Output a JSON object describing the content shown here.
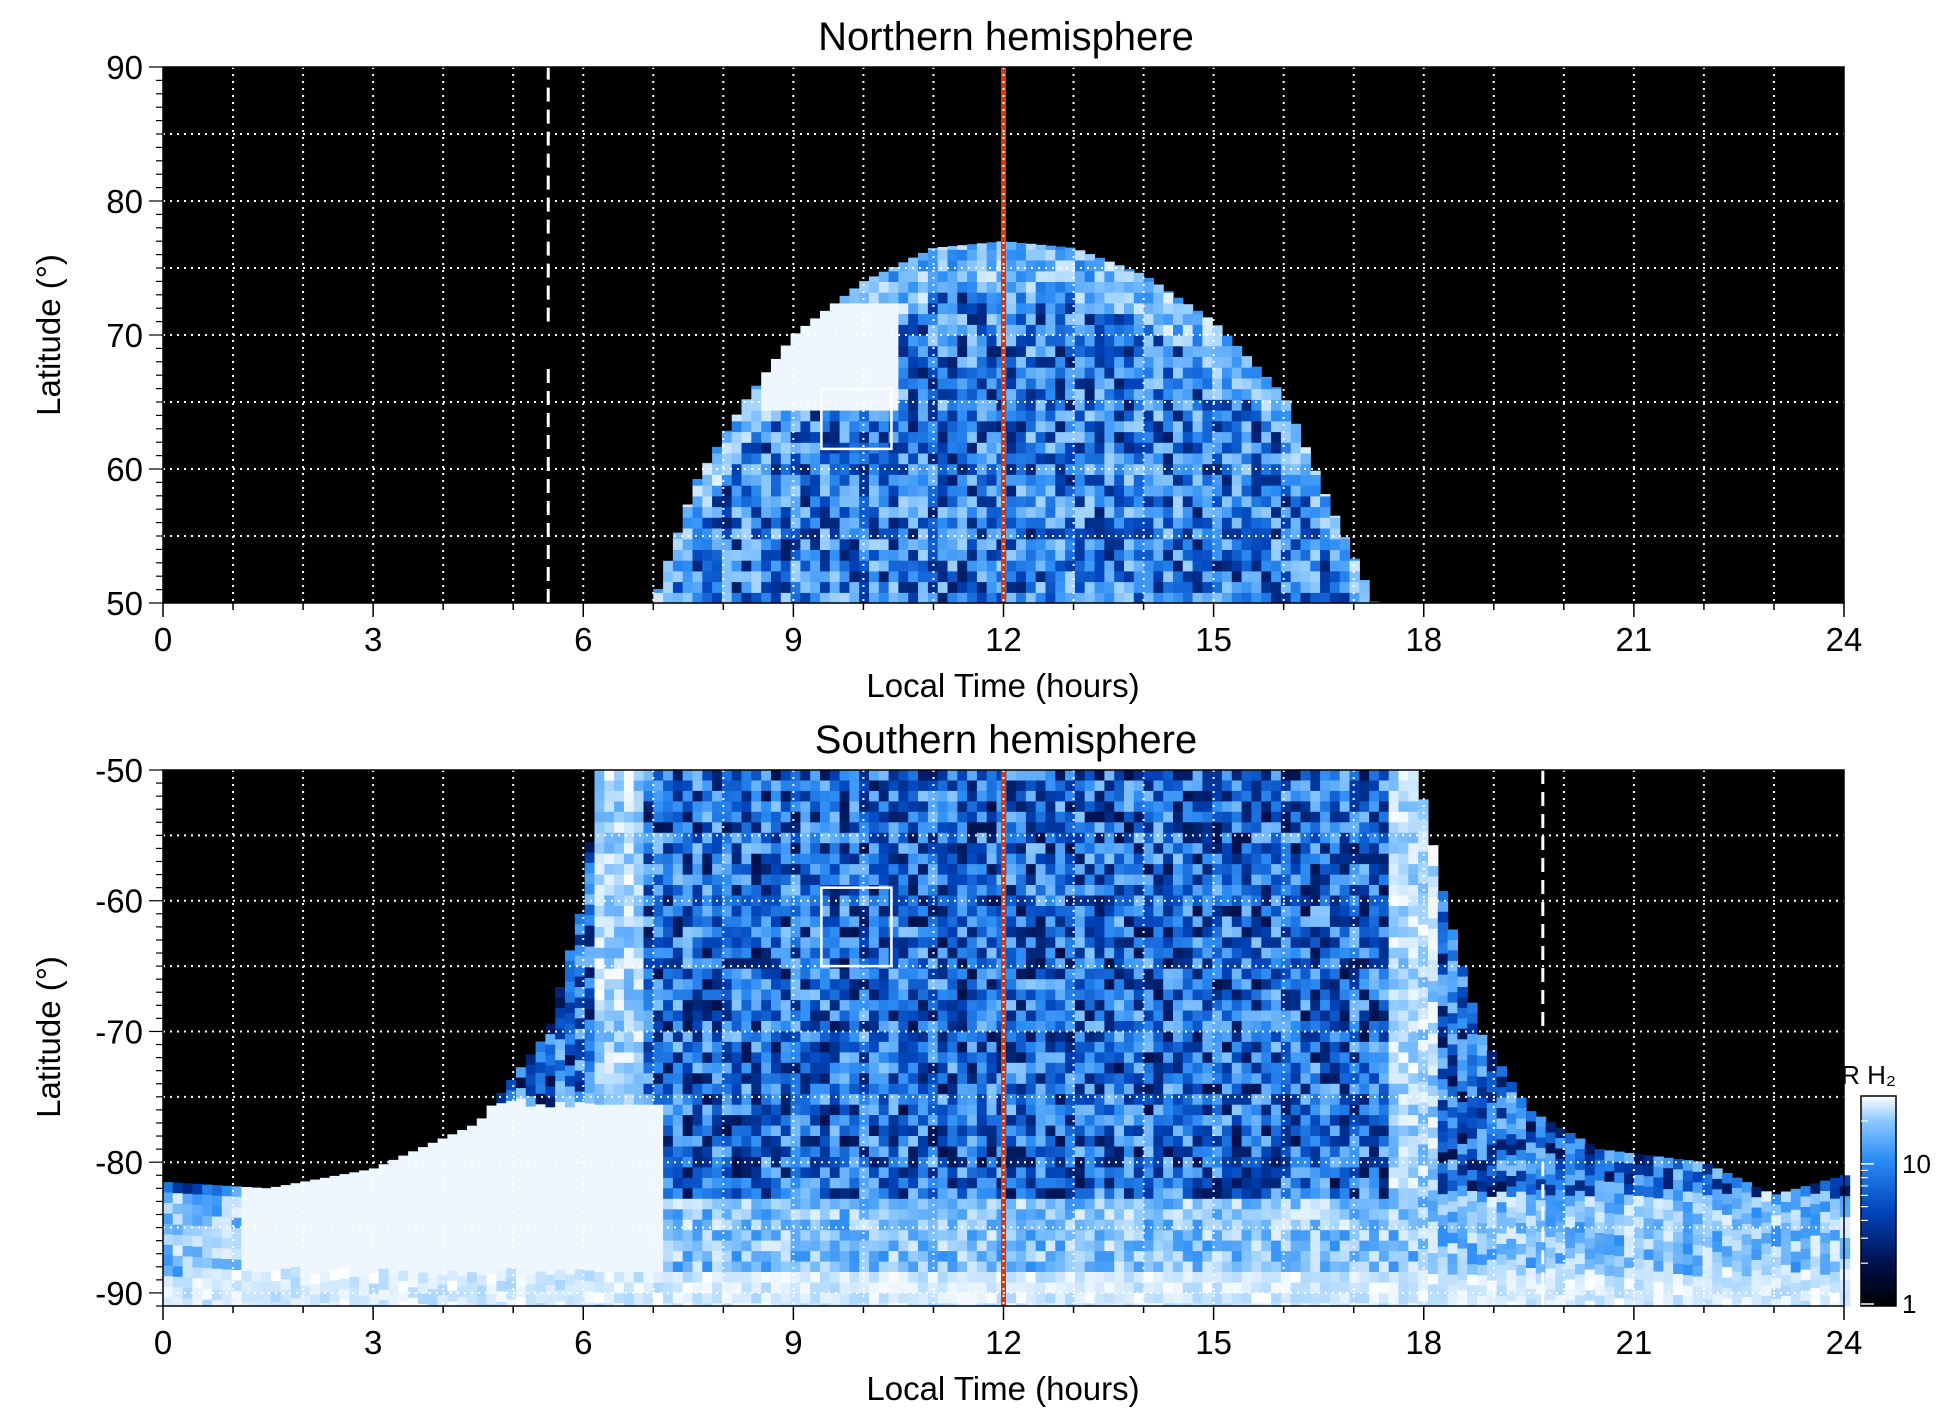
{
  "chart_data": [
    {
      "type": "heatmap",
      "title": "Northern hemisphere",
      "xlabel": "Local Time (hours)",
      "ylabel": "Latitude (°)",
      "xlim": [
        0,
        24
      ],
      "ylim": [
        50,
        90
      ],
      "xticks": [
        "0",
        "3",
        "6",
        "9",
        "12",
        "15",
        "18",
        "21",
        "24"
      ],
      "yticks": [
        "50",
        "60",
        "70",
        "80",
        "90"
      ],
      "grid": true,
      "noon_line_lt": 12,
      "dashed_line_lt": 5.5,
      "dashed_segments_lat": [
        [
          50,
          68
        ],
        [
          71,
          90
        ]
      ],
      "coverage_lat_boundary": [
        [
          7.0,
          50
        ],
        [
          7.6,
          59
        ],
        [
          8.3,
          65
        ],
        [
          9.0,
          70
        ],
        [
          10.0,
          74
        ],
        [
          11.0,
          76.5
        ],
        [
          12.0,
          77
        ],
        [
          13.0,
          76.5
        ],
        [
          14.0,
          74.5
        ],
        [
          15.0,
          71
        ],
        [
          16.0,
          65.5
        ],
        [
          16.6,
          58
        ],
        [
          17.3,
          50
        ]
      ],
      "bright_feature": {
        "lt_range": [
          8.5,
          10.5
        ],
        "lat_range": [
          64,
          72
        ]
      },
      "box": {
        "lt_range": [
          9.4,
          10.4
        ],
        "lat_range": [
          61.5,
          66
        ]
      }
    },
    {
      "type": "heatmap",
      "title": "Southern hemisphere",
      "xlabel": "Local Time (hours)",
      "ylabel": "Latitude (°)",
      "xlim": [
        0,
        24
      ],
      "ylim": [
        -91,
        -50
      ],
      "xticks": [
        "0",
        "3",
        "6",
        "9",
        "12",
        "15",
        "18",
        "21",
        "24"
      ],
      "yticks": [
        "-90",
        "-80",
        "-70",
        "-60",
        "-50"
      ],
      "grid": true,
      "noon_line_lt": 12,
      "dashed_line_lt": 19.7,
      "dashed_segments_lat": [
        [
          -50,
          -70
        ],
        [
          -80,
          -91
        ]
      ],
      "coverage_lat_boundary": [
        [
          0,
          -81.5
        ],
        [
          1.5,
          -82
        ],
        [
          3.0,
          -80.5
        ],
        [
          4.5,
          -77
        ],
        [
          5.5,
          -70
        ],
        [
          6.0,
          -60
        ],
        [
          6.2,
          -50
        ],
        [
          17.9,
          -50
        ],
        [
          18.3,
          -60
        ],
        [
          18.8,
          -70
        ],
        [
          19.5,
          -76
        ],
        [
          20.5,
          -79
        ],
        [
          22.0,
          -80
        ],
        [
          23.0,
          -82.5
        ],
        [
          24,
          -81
        ]
      ],
      "bright_bands_lt": [
        6.4,
        17.8
      ],
      "box": {
        "lt_range": [
          9.4,
          10.4
        ],
        "lat_range": [
          -59,
          -65
        ]
      }
    }
  ],
  "colorbar": {
    "label": "kR H₂",
    "ticks": [
      "1",
      "10"
    ],
    "range": [
      1,
      30
    ],
    "scale": "log",
    "colors": [
      "#000000",
      "#00104a",
      "#0044bb",
      "#2c8df5",
      "#8cc8ff",
      "#ffffff"
    ]
  },
  "colors": {
    "background": "#000000",
    "noon_line": "#d23a15",
    "grid": "#ffffff"
  }
}
